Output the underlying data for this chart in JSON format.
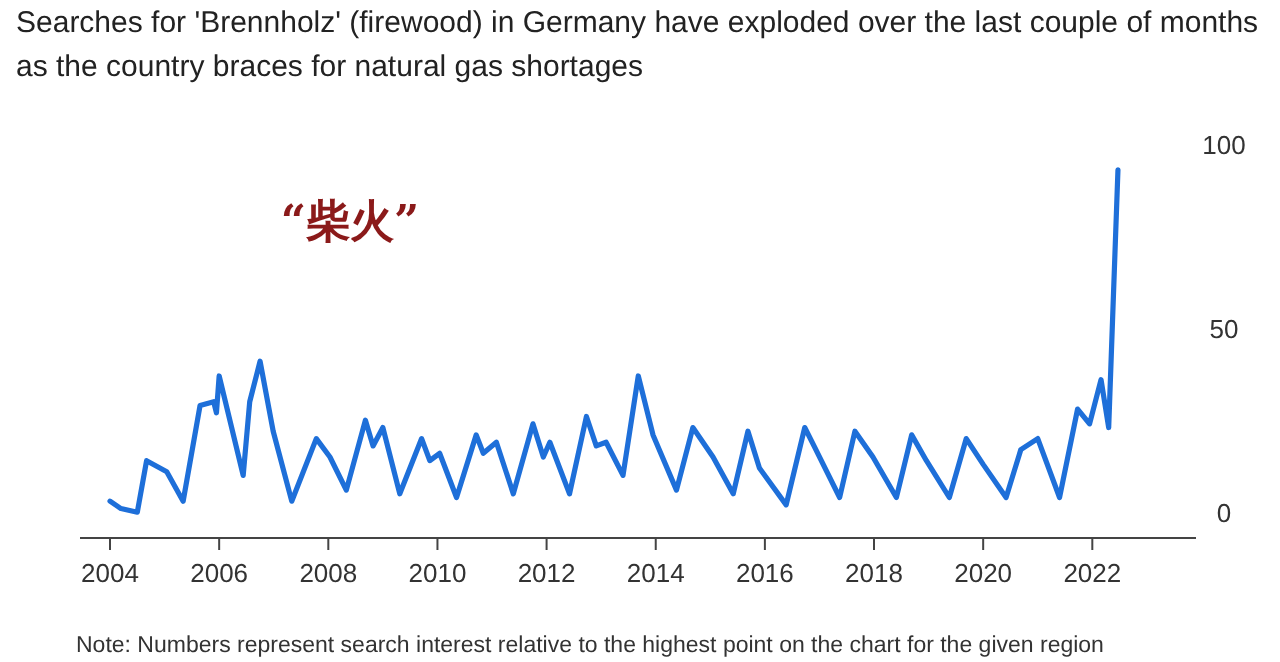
{
  "chart_data": {
    "type": "line",
    "title": "Searches for 'Brennholz' (firewood) in Germany have exploded over the last couple of months as the country braces for natural gas shortages",
    "annotations": [
      "“柴火”",
      "Note: Numbers represent search interest relative to the highest point on the chart for the given region"
    ],
    "x": [
      2004.0,
      2004.2,
      2004.5,
      2004.67,
      2005.04,
      2005.34,
      2005.65,
      2005.9,
      2005.95,
      2006.0,
      2006.44,
      2006.56,
      2006.75,
      2006.99,
      2007.33,
      2007.78,
      2008.03,
      2008.33,
      2008.68,
      2008.82,
      2009.0,
      2009.31,
      2009.71,
      2009.86,
      2010.04,
      2010.35,
      2010.71,
      2010.84,
      2011.08,
      2011.39,
      2011.75,
      2011.94,
      2012.06,
      2012.42,
      2012.73,
      2012.91,
      2013.09,
      2013.4,
      2013.68,
      2013.95,
      2014.38,
      2014.68,
      2015.05,
      2015.42,
      2015.69,
      2015.9,
      2016.39,
      2016.73,
      2016.9,
      2017.37,
      2017.65,
      2017.98,
      2018.41,
      2018.69,
      2018.96,
      2019.38,
      2019.69,
      2020.0,
      2020.42,
      2020.69,
      2021.0,
      2021.4,
      2021.73,
      2021.95,
      2022.16,
      2022.3,
      2022.47
    ],
    "values": [
      3,
      1,
      0,
      14,
      11,
      3,
      29,
      30,
      27,
      37,
      10,
      30,
      41,
      22,
      3,
      20,
      15,
      6,
      25,
      18,
      23,
      5,
      20,
      14,
      16,
      4,
      21,
      16,
      19,
      5,
      24,
      15,
      19,
      5,
      26,
      18,
      19,
      10,
      37,
      21,
      6,
      23,
      15,
      5,
      22,
      12,
      2,
      23,
      18,
      4,
      22,
      15,
      4,
      21,
      14,
      4,
      20,
      13,
      4,
      17,
      20,
      4,
      28,
      24,
      36,
      23,
      93
    ],
    "color": "#1e6fd9",
    "xlim": [
      2003.45,
      2023.9
    ],
    "ylim": [
      -7,
      100
    ],
    "xticks": [
      2004,
      2006,
      2008,
      2010,
      2012,
      2014,
      2016,
      2018,
      2020,
      2022
    ],
    "yticks": [
      0,
      50,
      100
    ]
  }
}
